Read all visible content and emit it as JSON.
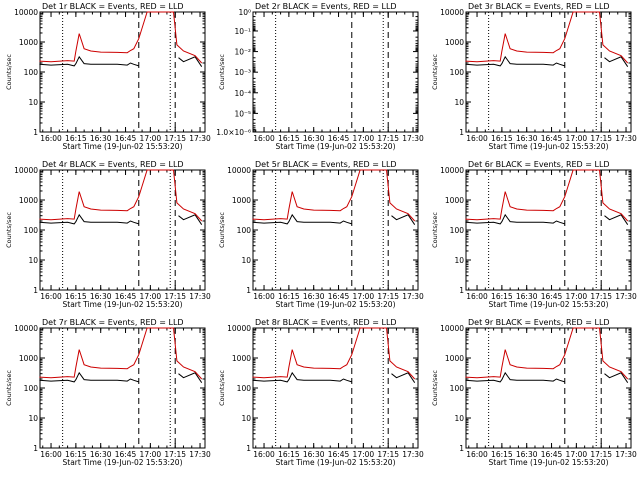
{
  "figure": {
    "background": "#ffffff",
    "colors": {
      "events": "#000000",
      "lld": "#cc0000",
      "axes": "#000000"
    }
  },
  "chart_data": [
    {
      "type": "line",
      "title": "Det 1r BLACK = Events, RED = LLD",
      "xlabel": "Start Time (19-Jun-02 15:53:20)",
      "ylabel": "Counts/sec",
      "scale": "log",
      "ylim": [
        1,
        10000
      ],
      "y_ticks": [
        "1",
        "10",
        "100",
        "1000",
        "10000"
      ],
      "x_ticks": [
        "16:00",
        "16:15",
        "16:30",
        "16:45",
        "17:00",
        "17:15",
        "17:30"
      ],
      "vlines_dotted": [
        "16:07",
        "17:12"
      ],
      "vlines_dashed": [
        "16:53",
        "17:15"
      ],
      "series": [
        {
          "name": "Events",
          "x": [
            "15:53",
            "16:00",
            "16:10",
            "16:14",
            "16:15",
            "16:17",
            "16:20",
            "16:24",
            "16:30",
            "16:40",
            "16:46",
            "16:48",
            "16:50",
            "16:53",
            "17:10",
            "17:15",
            "17:17",
            "17:20",
            "17:27",
            "17:31"
          ],
          "values": [
            180,
            170,
            180,
            160,
            190,
            320,
            190,
            180,
            180,
            180,
            170,
            200,
            180,
            160,
            null,
            null,
            300,
            220,
            320,
            150
          ]
        },
        {
          "name": "LLD",
          "x": [
            "15:53",
            "16:00",
            "16:10",
            "16:14",
            "16:15",
            "16:17",
            "16:20",
            "16:24",
            "16:30",
            "16:40",
            "16:46",
            "16:48",
            "16:50",
            "16:53",
            "16:58",
            "17:14",
            "17:16",
            "17:20",
            "17:27",
            "17:31"
          ],
          "values": [
            230,
            220,
            240,
            230,
            500,
            1900,
            600,
            500,
            460,
            450,
            440,
            520,
            600,
            1300,
            12000,
            12000,
            800,
            500,
            350,
            200
          ]
        }
      ]
    },
    {
      "type": "line",
      "title": "Det 2r BLACK = Events, RED = LLD",
      "xlabel": "Start Time (19-Jun-02 15:53:20)",
      "ylabel": "Counts/sec",
      "scale": "log",
      "ylim": [
        0.8,
        1.2e-06
      ],
      "y_ticks": [
        "1.0×10⁻⁶",
        "10⁻⁵",
        "10⁻⁴",
        "10⁻³",
        "10⁻²",
        "10⁻¹",
        "10⁰"
      ],
      "x_ticks": [
        "16:00",
        "16:15",
        "16:30",
        "16:45",
        "17:00",
        "17:15",
        "17:30"
      ],
      "vlines_dotted": [
        "16:07",
        "17:12"
      ],
      "vlines_dashed": [
        "16:53",
        "17:15"
      ],
      "series": []
    },
    {
      "type": "line",
      "title": "Det 3r BLACK = Events, RED = LLD",
      "xlabel": "Start Time (19-Jun-02 15:53:20)",
      "ylabel": "Counts/sec",
      "scale": "log",
      "ylim": [
        1,
        10000
      ],
      "y_ticks": [
        "1",
        "10",
        "100",
        "1000",
        "10000"
      ],
      "x_ticks": [
        "16:00",
        "16:15",
        "16:30",
        "16:45",
        "17:00",
        "17:15",
        "17:30"
      ],
      "vlines_dotted": [
        "16:07",
        "17:12"
      ],
      "vlines_dashed": [
        "16:53",
        "17:15"
      ],
      "series": [
        {
          "name": "Events",
          "x": [
            "15:53",
            "16:00",
            "16:10",
            "16:14",
            "16:15",
            "16:17",
            "16:20",
            "16:24",
            "16:30",
            "16:40",
            "16:46",
            "16:48",
            "16:50",
            "16:53",
            "17:10",
            "17:15",
            "17:17",
            "17:20",
            "17:27",
            "17:31"
          ],
          "values": [
            180,
            170,
            180,
            160,
            190,
            320,
            190,
            180,
            180,
            180,
            170,
            200,
            180,
            160,
            null,
            null,
            300,
            220,
            320,
            150
          ]
        },
        {
          "name": "LLD",
          "x": [
            "15:53",
            "16:00",
            "16:10",
            "16:14",
            "16:15",
            "16:17",
            "16:20",
            "16:24",
            "16:30",
            "16:40",
            "16:46",
            "16:48",
            "16:50",
            "16:53",
            "16:58",
            "17:14",
            "17:16",
            "17:20",
            "17:27",
            "17:31"
          ],
          "values": [
            230,
            220,
            240,
            230,
            500,
            1900,
            600,
            500,
            460,
            450,
            440,
            520,
            600,
            1300,
            12000,
            12000,
            800,
            500,
            350,
            200
          ]
        }
      ]
    },
    {
      "type": "line",
      "title": "Det 4r BLACK = Events, RED = LLD",
      "xlabel": "Start Time (19-Jun-02 15:53:20)",
      "ylabel": "Counts/sec",
      "scale": "log",
      "ylim": [
        1,
        10000
      ],
      "y_ticks": [
        "1",
        "10",
        "100",
        "1000",
        "10000"
      ],
      "x_ticks": [
        "16:00",
        "16:15",
        "16:30",
        "16:45",
        "17:00",
        "17:15",
        "17:30"
      ],
      "vlines_dotted": [
        "16:07",
        "17:12"
      ],
      "vlines_dashed": [
        "16:53",
        "17:15"
      ],
      "series": [
        {
          "name": "Events",
          "x": [
            "15:53",
            "16:00",
            "16:10",
            "16:14",
            "16:15",
            "16:17",
            "16:20",
            "16:24",
            "16:30",
            "16:40",
            "16:46",
            "16:48",
            "16:50",
            "16:53",
            "17:10",
            "17:15",
            "17:17",
            "17:20",
            "17:27",
            "17:31"
          ],
          "values": [
            180,
            170,
            180,
            160,
            190,
            320,
            190,
            180,
            180,
            180,
            170,
            200,
            180,
            160,
            null,
            null,
            300,
            220,
            320,
            150
          ]
        },
        {
          "name": "LLD",
          "x": [
            "15:53",
            "16:00",
            "16:10",
            "16:14",
            "16:15",
            "16:17",
            "16:20",
            "16:24",
            "16:30",
            "16:40",
            "16:46",
            "16:48",
            "16:50",
            "16:53",
            "16:58",
            "17:14",
            "17:16",
            "17:20",
            "17:27",
            "17:31"
          ],
          "values": [
            230,
            220,
            240,
            230,
            500,
            1900,
            600,
            500,
            460,
            450,
            440,
            520,
            600,
            1300,
            12000,
            12000,
            800,
            500,
            350,
            200
          ]
        }
      ]
    },
    {
      "type": "line",
      "title": "Det 5r BLACK = Events, RED = LLD",
      "xlabel": "Start Time (19-Jun-02 15:53:20)",
      "ylabel": "Counts/sec",
      "scale": "log",
      "ylim": [
        1,
        10000
      ],
      "y_ticks": [
        "1",
        "10",
        "100",
        "1000",
        "10000"
      ],
      "x_ticks": [
        "16:00",
        "16:15",
        "16:30",
        "16:45",
        "17:00",
        "17:15",
        "17:30"
      ],
      "vlines_dotted": [
        "16:07",
        "17:12"
      ],
      "vlines_dashed": [
        "16:53",
        "17:15"
      ],
      "series": [
        {
          "name": "Events",
          "x": [
            "15:53",
            "16:00",
            "16:10",
            "16:14",
            "16:15",
            "16:17",
            "16:20",
            "16:24",
            "16:30",
            "16:40",
            "16:46",
            "16:48",
            "16:50",
            "16:53",
            "17:10",
            "17:15",
            "17:17",
            "17:20",
            "17:27",
            "17:31"
          ],
          "values": [
            180,
            170,
            180,
            160,
            190,
            320,
            190,
            180,
            180,
            180,
            170,
            200,
            180,
            160,
            null,
            null,
            300,
            220,
            320,
            150
          ]
        },
        {
          "name": "LLD",
          "x": [
            "15:53",
            "16:00",
            "16:10",
            "16:14",
            "16:15",
            "16:17",
            "16:20",
            "16:24",
            "16:30",
            "16:40",
            "16:46",
            "16:48",
            "16:50",
            "16:53",
            "16:58",
            "17:14",
            "17:16",
            "17:20",
            "17:27",
            "17:31"
          ],
          "values": [
            230,
            220,
            240,
            230,
            500,
            1900,
            600,
            500,
            460,
            450,
            440,
            520,
            600,
            1300,
            12000,
            12000,
            800,
            500,
            350,
            200
          ]
        }
      ]
    },
    {
      "type": "line",
      "title": "Det 6r BLACK = Events, RED = LLD",
      "xlabel": "Start Time (19-Jun-02 15:53:20)",
      "ylabel": "Counts/sec",
      "scale": "log",
      "ylim": [
        1,
        10000
      ],
      "y_ticks": [
        "1",
        "10",
        "100",
        "1000",
        "10000"
      ],
      "x_ticks": [
        "16:00",
        "16:15",
        "16:30",
        "16:45",
        "17:00",
        "17:15",
        "17:30"
      ],
      "vlines_dotted": [
        "16:07",
        "17:12"
      ],
      "vlines_dashed": [
        "16:53",
        "17:15"
      ],
      "series": [
        {
          "name": "Events",
          "x": [
            "15:53",
            "16:00",
            "16:10",
            "16:14",
            "16:15",
            "16:17",
            "16:20",
            "16:24",
            "16:30",
            "16:40",
            "16:46",
            "16:48",
            "16:50",
            "16:53",
            "17:10",
            "17:15",
            "17:17",
            "17:20",
            "17:27",
            "17:31"
          ],
          "values": [
            180,
            170,
            180,
            160,
            190,
            320,
            190,
            180,
            180,
            180,
            170,
            200,
            180,
            160,
            null,
            null,
            300,
            220,
            320,
            150
          ]
        },
        {
          "name": "LLD",
          "x": [
            "15:53",
            "16:00",
            "16:10",
            "16:14",
            "16:15",
            "16:17",
            "16:20",
            "16:24",
            "16:30",
            "16:40",
            "16:46",
            "16:48",
            "16:50",
            "16:53",
            "16:58",
            "17:14",
            "17:16",
            "17:20",
            "17:27",
            "17:31"
          ],
          "values": [
            230,
            220,
            240,
            230,
            500,
            1900,
            600,
            500,
            460,
            450,
            440,
            520,
            600,
            1300,
            12000,
            12000,
            800,
            500,
            350,
            200
          ]
        }
      ]
    },
    {
      "type": "line",
      "title": "Det 7r BLACK = Events, RED = LLD",
      "xlabel": "Start Time (19-Jun-02 15:53:20)",
      "ylabel": "Counts/sec",
      "scale": "log",
      "ylim": [
        1,
        10000
      ],
      "y_ticks": [
        "1",
        "10",
        "100",
        "1000",
        "10000"
      ],
      "x_ticks": [
        "16:00",
        "16:15",
        "16:30",
        "16:45",
        "17:00",
        "17:15",
        "17:30"
      ],
      "vlines_dotted": [
        "16:07",
        "17:12"
      ],
      "vlines_dashed": [
        "16:53",
        "17:15"
      ],
      "series": [
        {
          "name": "Events",
          "x": [
            "15:53",
            "16:00",
            "16:10",
            "16:14",
            "16:15",
            "16:17",
            "16:20",
            "16:24",
            "16:30",
            "16:40",
            "16:46",
            "16:48",
            "16:50",
            "16:53",
            "17:10",
            "17:15",
            "17:17",
            "17:20",
            "17:27",
            "17:31"
          ],
          "values": [
            180,
            170,
            180,
            160,
            190,
            320,
            190,
            180,
            180,
            180,
            170,
            200,
            180,
            160,
            null,
            null,
            300,
            220,
            320,
            150
          ]
        },
        {
          "name": "LLD",
          "x": [
            "15:53",
            "16:00",
            "16:10",
            "16:14",
            "16:15",
            "16:17",
            "16:20",
            "16:24",
            "16:30",
            "16:40",
            "16:46",
            "16:48",
            "16:50",
            "16:53",
            "16:58",
            "17:14",
            "17:16",
            "17:20",
            "17:27",
            "17:31"
          ],
          "values": [
            230,
            220,
            240,
            230,
            500,
            1900,
            600,
            500,
            460,
            450,
            440,
            520,
            600,
            1300,
            12000,
            12000,
            800,
            500,
            350,
            200
          ]
        }
      ]
    },
    {
      "type": "line",
      "title": "Det 8r BLACK = Events, RED = LLD",
      "xlabel": "Start Time (19-Jun-02 15:53:20)",
      "ylabel": "Counts/sec",
      "scale": "log",
      "ylim": [
        1,
        10000
      ],
      "y_ticks": [
        "1",
        "10",
        "100",
        "1000",
        "10000"
      ],
      "x_ticks": [
        "16:00",
        "16:15",
        "16:30",
        "16:45",
        "17:00",
        "17:15",
        "17:30"
      ],
      "vlines_dotted": [
        "16:07",
        "17:12"
      ],
      "vlines_dashed": [
        "16:53",
        "17:15"
      ],
      "series": [
        {
          "name": "Events",
          "x": [
            "15:53",
            "16:00",
            "16:10",
            "16:14",
            "16:15",
            "16:17",
            "16:20",
            "16:24",
            "16:30",
            "16:40",
            "16:46",
            "16:48",
            "16:50",
            "16:53",
            "17:10",
            "17:15",
            "17:17",
            "17:20",
            "17:27",
            "17:31"
          ],
          "values": [
            180,
            170,
            180,
            160,
            190,
            320,
            190,
            180,
            180,
            180,
            170,
            200,
            180,
            160,
            null,
            null,
            300,
            220,
            320,
            150
          ]
        },
        {
          "name": "LLD",
          "x": [
            "15:53",
            "16:00",
            "16:10",
            "16:14",
            "16:15",
            "16:17",
            "16:20",
            "16:24",
            "16:30",
            "16:40",
            "16:46",
            "16:48",
            "16:50",
            "16:53",
            "16:58",
            "17:14",
            "17:16",
            "17:20",
            "17:27",
            "17:31"
          ],
          "values": [
            230,
            220,
            240,
            230,
            500,
            1900,
            600,
            500,
            460,
            450,
            440,
            520,
            600,
            1300,
            12000,
            12000,
            800,
            500,
            350,
            200
          ]
        }
      ]
    },
    {
      "type": "line",
      "title": "Det 9r BLACK = Events, RED = LLD",
      "xlabel": "Start Time (19-Jun-02 15:53:20)",
      "ylabel": "Counts/sec",
      "scale": "log",
      "ylim": [
        1,
        10000
      ],
      "y_ticks": [
        "1",
        "10",
        "100",
        "1000",
        "10000"
      ],
      "x_ticks": [
        "16:00",
        "16:15",
        "16:30",
        "16:45",
        "17:00",
        "17:15",
        "17:30"
      ],
      "vlines_dotted": [
        "16:07",
        "17:12"
      ],
      "vlines_dashed": [
        "16:53",
        "17:15"
      ],
      "series": [
        {
          "name": "Events",
          "x": [
            "15:53",
            "16:00",
            "16:10",
            "16:14",
            "16:15",
            "16:17",
            "16:20",
            "16:24",
            "16:30",
            "16:40",
            "16:46",
            "16:48",
            "16:50",
            "16:53",
            "17:10",
            "17:15",
            "17:17",
            "17:20",
            "17:27",
            "17:31"
          ],
          "values": [
            180,
            170,
            180,
            160,
            190,
            320,
            190,
            180,
            180,
            180,
            170,
            200,
            180,
            160,
            null,
            null,
            300,
            220,
            320,
            150
          ]
        },
        {
          "name": "LLD",
          "x": [
            "15:53",
            "16:00",
            "16:10",
            "16:14",
            "16:15",
            "16:17",
            "16:20",
            "16:24",
            "16:30",
            "16:40",
            "16:46",
            "16:48",
            "16:50",
            "16:53",
            "16:58",
            "17:14",
            "17:16",
            "17:20",
            "17:27",
            "17:31"
          ],
          "values": [
            230,
            220,
            240,
            230,
            500,
            1900,
            600,
            500,
            460,
            450,
            440,
            520,
            600,
            1300,
            12000,
            12000,
            800,
            500,
            350,
            200
          ]
        }
      ]
    }
  ]
}
